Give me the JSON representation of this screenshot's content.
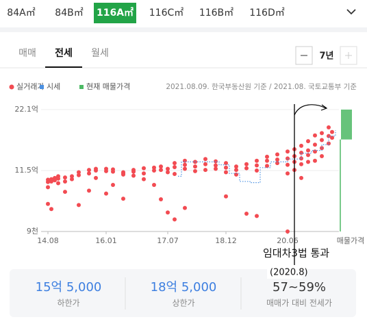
{
  "tabs": [
    "84A㎡",
    "84B㎡",
    "116A㎡",
    "116C㎡",
    "116B㎡",
    "116D㎡"
  ],
  "selected_tab": 2,
  "deal_tabs": [
    "매매",
    "전세",
    "월세"
  ],
  "selected_deal_tab": 1,
  "period": "7년",
  "chart_data": {
    "type": "scatter",
    "source_note": "2021.08.09. 한국부동산원 기준 / 2021.08. 국토교통부 기준",
    "ylim": [
      0.9,
      22.1
    ],
    "yticks": [
      {
        "value": 22.1,
        "label": "22.1억"
      },
      {
        "value": 11.5,
        "label": "11.5억"
      },
      {
        "value": 0.9,
        "label": "9천"
      }
    ],
    "xlim": [
      "14.07",
      "21.08"
    ],
    "xticks": [
      "14.08",
      "16.01",
      "17.07",
      "18.12",
      "20.06"
    ],
    "listing_label": "매물가격",
    "grid": true,
    "series": [
      {
        "name": "실거래가",
        "color": "#f24b52",
        "style": "dots",
        "x": [
          "14.08",
          "14.08",
          "14.08",
          "14.08",
          "14.09",
          "14.09",
          "14.09",
          "14.10",
          "14.10",
          "14.11",
          "14.11",
          "14.11",
          "15.01",
          "15.01",
          "15.01",
          "15.03",
          "15.03",
          "15.05",
          "15.05",
          "15.05",
          "15.08",
          "15.08",
          "15.08",
          "15.10",
          "15.10",
          "15.10",
          "16.01",
          "16.01",
          "16.01",
          "16.03",
          "16.03",
          "16.03",
          "16.06",
          "16.06",
          "16.06",
          "16.06",
          "16.09",
          "16.09",
          "16.09",
          "16.12",
          "16.12",
          "16.12",
          "17.03",
          "17.03",
          "17.03",
          "17.05",
          "17.05",
          "17.05",
          "17.07",
          "17.07",
          "17.07",
          "17.09",
          "17.09",
          "17.09",
          "17.09",
          "17.12",
          "17.12",
          "17.12",
          "17.12",
          "18.03",
          "18.03",
          "18.03",
          "18.06",
          "18.06",
          "18.06",
          "18.09",
          "18.09",
          "18.09",
          "18.12",
          "18.12",
          "18.12",
          "18.12",
          "19.03",
          "19.03",
          "19.03",
          "19.06",
          "19.06",
          "19.06",
          "19.09",
          "19.09",
          "19.09",
          "19.09",
          "19.12",
          "19.12",
          "19.12",
          "20.03",
          "20.03",
          "20.03",
          "20.06",
          "20.06",
          "20.06",
          "20.06",
          "20.06",
          "20.08",
          "20.08",
          "20.08",
          "20.08",
          "20.10",
          "20.10",
          "20.10",
          "20.10",
          "20.10",
          "20.12",
          "20.12",
          "20.12",
          "20.12",
          "21.02",
          "21.02",
          "21.02",
          "21.02",
          "21.04",
          "21.04",
          "21.04",
          "21.04",
          "21.06",
          "21.06",
          "21.06",
          "21.07",
          "21.07"
        ],
        "values": [
          9.5,
          9.9,
          8.6,
          5.7,
          9.6,
          10.0,
          4.8,
          10.2,
          9.8,
          10.1,
          9.3,
          10.5,
          10.3,
          9.6,
          7.8,
          10.5,
          10.0,
          11.2,
          10.7,
          5.5,
          11.6,
          11.0,
          8.0,
          11.5,
          11.8,
          10.2,
          11.8,
          11.4,
          7.5,
          11.7,
          11.3,
          9.0,
          11.2,
          11.0,
          10.8,
          6.6,
          11.6,
          11.3,
          10.6,
          11.9,
          11.0,
          10.0,
          12.0,
          11.5,
          9.0,
          12.2,
          11.6,
          6.5,
          11.8,
          11.2,
          4.2,
          12.8,
          12.1,
          10.9,
          3.0,
          12.5,
          13.2,
          11.8,
          5.0,
          13.0,
          12.2,
          11.4,
          12.6,
          13.5,
          11.6,
          13.1,
          12.4,
          11.8,
          12.8,
          12.0,
          11.2,
          7.0,
          12.2,
          11.6,
          10.8,
          12.6,
          11.9,
          4.0,
          13.2,
          12.4,
          11.5,
          3.6,
          13.9,
          13.2,
          12.3,
          14.3,
          13.4,
          12.8,
          14.8,
          13.6,
          12.5,
          11.0,
          0.9,
          15.2,
          14.0,
          13.0,
          11.6,
          15.8,
          14.6,
          13.6,
          12.6,
          10.2,
          16.6,
          15.0,
          14.2,
          13.0,
          17.6,
          16.0,
          14.8,
          13.2,
          18.0,
          16.8,
          15.4,
          14.0,
          19.0,
          17.5,
          16.2,
          18.2,
          17.2
        ]
      },
      {
        "name": "시세",
        "color": "#4a90e2",
        "style": "dotted-step",
        "x": [
          "17.10",
          "17.11",
          "18.06",
          "18.10",
          "19.01",
          "19.04",
          "19.07",
          "19.10",
          "20.01",
          "20.06",
          "20.10",
          "21.01",
          "21.04",
          "21.06",
          "21.08"
        ],
        "values": [
          10.5,
          13.0,
          13.0,
          12.5,
          11.0,
          9.6,
          9.4,
          12.0,
          13.0,
          13.5,
          14.5,
          15.0,
          16.0,
          17.5,
          18.5
        ]
      },
      {
        "name": "현재 매물가격",
        "color": "#4cb964",
        "style": "range",
        "values": [
          16.9,
          22.1
        ]
      }
    ],
    "annotation": {
      "label": "임대차3법 통과",
      "date_label": "(2020.8)",
      "x": "20.08"
    }
  },
  "summary": [
    {
      "value": "15억 5,000",
      "label": "하한가"
    },
    {
      "value": "18억 5,000",
      "label": "상한가"
    },
    {
      "value": "57~59%",
      "label": "매매가 대비 전세가"
    }
  ]
}
